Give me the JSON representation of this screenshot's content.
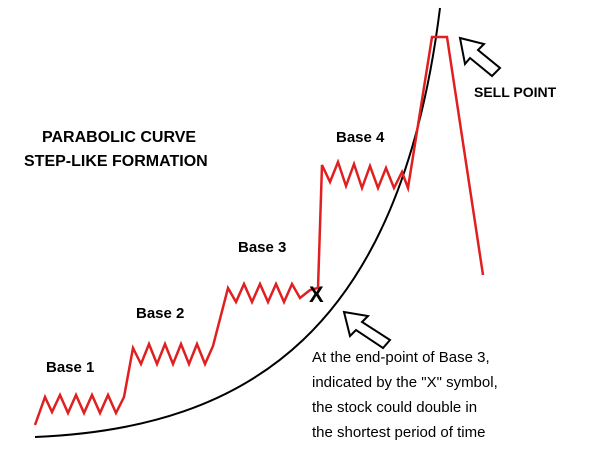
{
  "title": {
    "line1": "PARABOLIC CURVE",
    "line2": "STEP-LIKE FORMATION"
  },
  "bases": [
    "Base 1",
    "Base 2",
    "Base 3",
    "Base 4"
  ],
  "marker": "X",
  "sell_point": "SELL POINT",
  "annotation": [
    "At the end-point of Base 3,",
    "indicated by the \"X\" symbol,",
    "the stock could double in",
    "the shortest period of time"
  ]
}
